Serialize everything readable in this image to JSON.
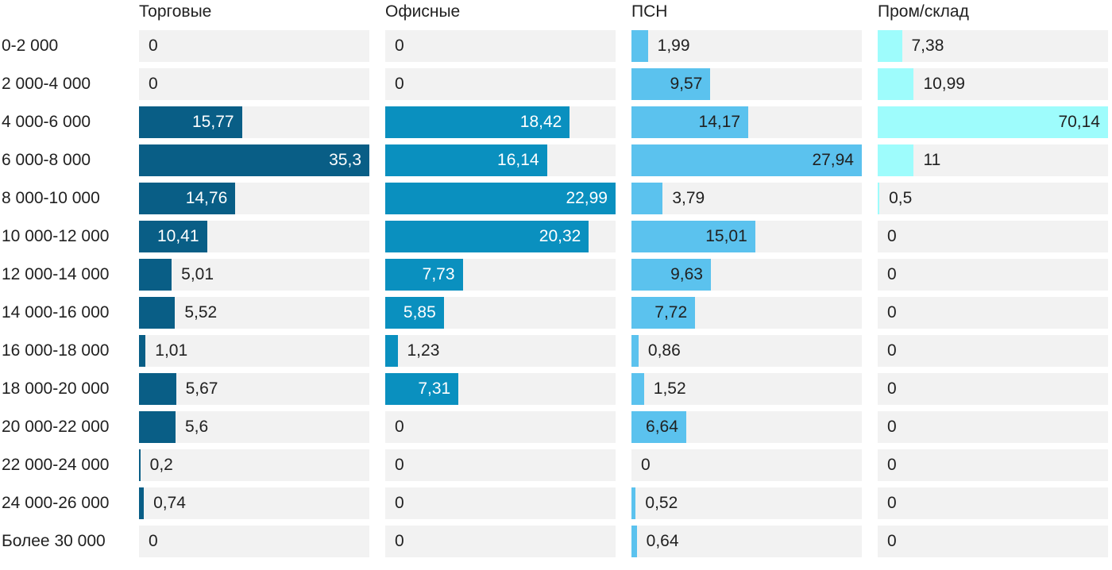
{
  "chart_data": {
    "type": "bar",
    "orientation": "horizontal",
    "title": "",
    "xlabel": "",
    "ylabel": "",
    "grid": "off",
    "legend_position": "top-column-headers",
    "scaling": "each column scaled independently to its own max value",
    "track_color": "#f2f2f2",
    "text_color": "#212121",
    "categories": [
      "0-2 000",
      "2 000-4 000",
      "4 000-6 000",
      "6 000-8 000",
      "8 000-10 000",
      "10 000-12 000",
      "12 000-14 000",
      "14 000-16 000",
      "16 000-18 000",
      "18 000-20 000",
      "20 000-22 000",
      "22 000-24 000",
      "24 000-26 000",
      "Более 30 000"
    ],
    "column_max": [
      35.3,
      22.99,
      27.94,
      70.14
    ],
    "series": [
      {
        "name": "Торговые",
        "color": "#095e86",
        "inside_label_color": "#ffffff",
        "values": [
          0,
          0,
          15.77,
          35.3,
          14.76,
          10.41,
          5.01,
          5.52,
          1.01,
          5.67,
          5.6,
          0.2,
          0.74,
          0
        ],
        "labels": [
          "0",
          "0",
          "15,77",
          "35,3",
          "14,76",
          "10,41",
          "5,01",
          "5,52",
          "1,01",
          "5,67",
          "5,6",
          "0,2",
          "0,74",
          "0"
        ]
      },
      {
        "name": "Офисные",
        "color": "#0a90bf",
        "inside_label_color": "#ffffff",
        "values": [
          0,
          0,
          18.42,
          16.14,
          22.99,
          20.32,
          7.73,
          5.85,
          1.23,
          7.31,
          0,
          0,
          0,
          0
        ],
        "labels": [
          "0",
          "0",
          "18,42",
          "16,14",
          "22,99",
          "20,32",
          "7,73",
          "5,85",
          "1,23",
          "7,31",
          "0",
          "0",
          "0",
          "0"
        ]
      },
      {
        "name": "ПСН",
        "color": "#5bc2ee",
        "inside_label_color": "#212121",
        "values": [
          1.99,
          9.57,
          14.17,
          27.94,
          3.79,
          15.01,
          9.63,
          7.72,
          0.86,
          1.52,
          6.64,
          0,
          0.52,
          0.64
        ],
        "labels": [
          "1,99",
          "9,57",
          "14,17",
          "27,94",
          "3,79",
          "15,01",
          "9,63",
          "7,72",
          "0,86",
          "1,52",
          "6,64",
          "0",
          "0,52",
          "0,64"
        ]
      },
      {
        "name": "Пром/склад",
        "color": "#9efcfc",
        "inside_label_color": "#212121",
        "values": [
          7.38,
          10.99,
          70.14,
          11,
          0.5,
          0,
          0,
          0,
          0,
          0,
          0,
          0,
          0,
          0
        ],
        "labels": [
          "7,38",
          "10,99",
          "70,14",
          "11",
          "0,5",
          "0",
          "0",
          "0",
          "0",
          "0",
          "0",
          "0",
          "0",
          "0"
        ]
      }
    ]
  }
}
